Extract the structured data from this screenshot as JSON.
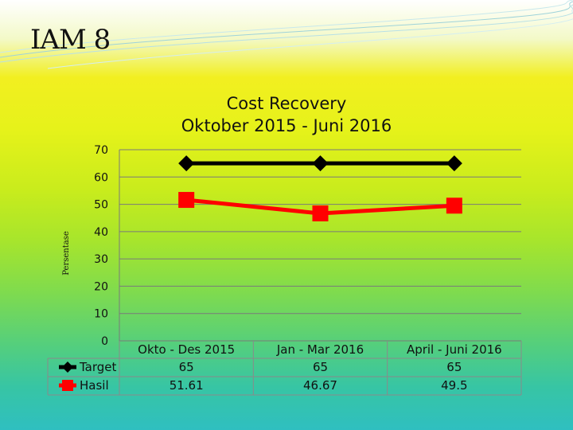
{
  "slide": {
    "title": "IAM 8"
  },
  "chart_data": {
    "type": "line",
    "title": "Cost Recovery",
    "subtitle": "Oktober 2015 - Juni 2016",
    "ylabel": "Persentase",
    "xlabel": "",
    "ylim": [
      0,
      70
    ],
    "yticks": [
      "0",
      "10",
      "20",
      "30",
      "40",
      "50",
      "60",
      "70"
    ],
    "grid": true,
    "legend": "data-table-left",
    "categories": [
      "Okto - Des 2015",
      "Jan - Mar 2016",
      "April - Juni 2016"
    ],
    "series": [
      {
        "name": "Target",
        "values": [
          65,
          65,
          65
        ],
        "labels": [
          "65",
          "65",
          "65"
        ],
        "color": "#000000"
      },
      {
        "name": "Hasil",
        "values": [
          51.61,
          46.67,
          49.5
        ],
        "labels": [
          "51.61",
          "46.67",
          "49.5"
        ],
        "color": "#ff0000"
      }
    ]
  }
}
